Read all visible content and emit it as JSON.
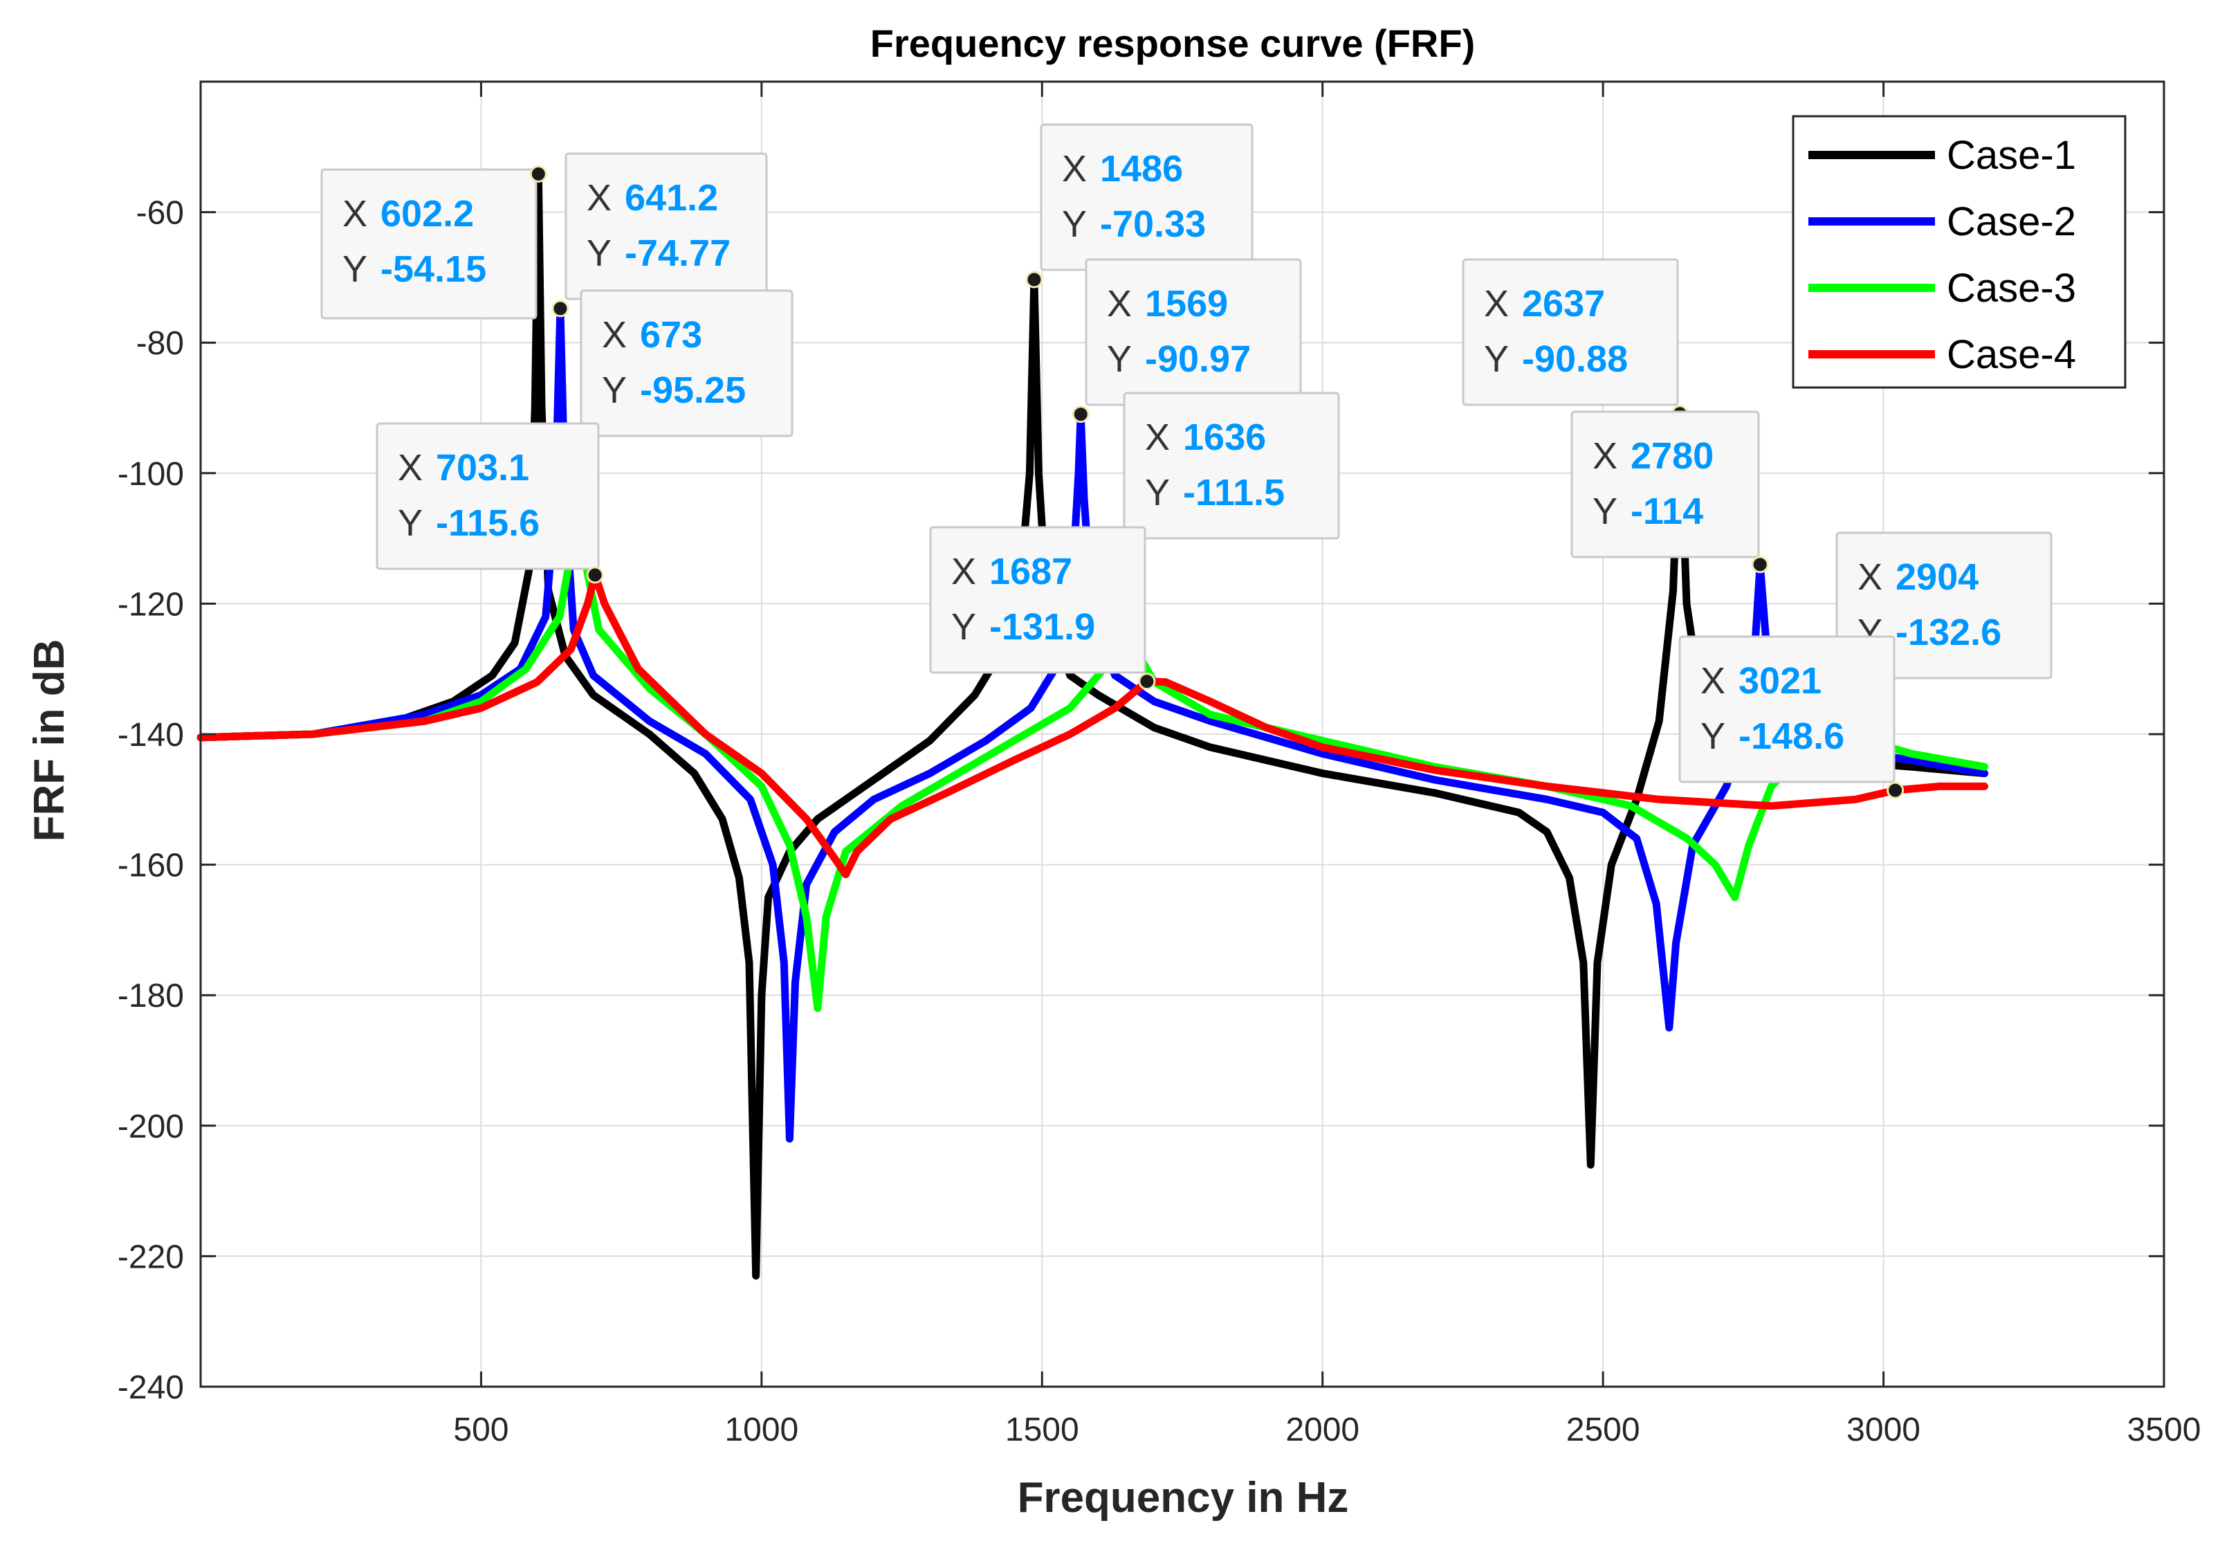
{
  "chart_data": {
    "type": "line",
    "title": "Frequency response curve (FRF)",
    "xlabel": "Frequency in Hz",
    "ylabel": "FRF in dB",
    "xlim": [
      0,
      3500
    ],
    "ylim": [
      -240,
      -40
    ],
    "grid": true,
    "legend_position": "top-right",
    "xticks": [
      500,
      1000,
      1500,
      2000,
      2500,
      3000,
      3500
    ],
    "xtick_labels": [
      "500",
      "1000",
      "1500",
      "2000",
      "2500",
      "3000",
      "3500"
    ],
    "yticks": [
      -60,
      -80,
      -100,
      -120,
      -140,
      -160,
      -180,
      -200,
      -220,
      -240
    ],
    "ytick_labels": [
      "-60",
      "-80",
      "-100",
      "-120",
      "-140",
      "-160",
      "-180",
      "-200",
      "-220",
      "-240"
    ],
    "series": [
      {
        "name": "Case-1",
        "color": "#000000",
        "points": [
          [
            0,
            -140.5
          ],
          [
            200,
            -140
          ],
          [
            350,
            -138
          ],
          [
            450,
            -135
          ],
          [
            520,
            -131
          ],
          [
            560,
            -126
          ],
          [
            585,
            -115
          ],
          [
            596,
            -90
          ],
          [
            602.2,
            -54.15
          ],
          [
            608,
            -90
          ],
          [
            620,
            -118
          ],
          [
            650,
            -128
          ],
          [
            700,
            -134
          ],
          [
            800,
            -140
          ],
          [
            880,
            -146
          ],
          [
            930,
            -153
          ],
          [
            960,
            -162
          ],
          [
            978,
            -175
          ],
          [
            990,
            -223
          ],
          [
            1000,
            -180
          ],
          [
            1012,
            -165
          ],
          [
            1050,
            -158
          ],
          [
            1100,
            -153
          ],
          [
            1200,
            -147
          ],
          [
            1300,
            -141
          ],
          [
            1380,
            -134
          ],
          [
            1430,
            -127
          ],
          [
            1460,
            -118
          ],
          [
            1478,
            -100
          ],
          [
            1486,
            -70.33
          ],
          [
            1494,
            -100
          ],
          [
            1510,
            -122
          ],
          [
            1550,
            -131
          ],
          [
            1600,
            -134
          ],
          [
            1700,
            -139
          ],
          [
            1800,
            -142
          ],
          [
            2000,
            -146
          ],
          [
            2200,
            -149
          ],
          [
            2350,
            -152
          ],
          [
            2400,
            -155
          ],
          [
            2440,
            -162
          ],
          [
            2465,
            -175
          ],
          [
            2478,
            -206
          ],
          [
            2490,
            -175
          ],
          [
            2515,
            -160
          ],
          [
            2560,
            -150
          ],
          [
            2600,
            -138
          ],
          [
            2625,
            -118
          ],
          [
            2637,
            -90.88
          ],
          [
            2649,
            -120
          ],
          [
            2680,
            -138
          ],
          [
            2750,
            -142
          ],
          [
            2900,
            -144
          ],
          [
            3050,
            -145
          ],
          [
            3180,
            -146
          ]
        ]
      },
      {
        "name": "Case-2",
        "color": "#0000ff",
        "points": [
          [
            0,
            -140.5
          ],
          [
            200,
            -140
          ],
          [
            400,
            -137
          ],
          [
            500,
            -134
          ],
          [
            570,
            -130
          ],
          [
            615,
            -122
          ],
          [
            632,
            -105
          ],
          [
            641.2,
            -74.77
          ],
          [
            650,
            -105
          ],
          [
            665,
            -124
          ],
          [
            700,
            -131
          ],
          [
            800,
            -138
          ],
          [
            900,
            -143
          ],
          [
            980,
            -150
          ],
          [
            1020,
            -160
          ],
          [
            1040,
            -175
          ],
          [
            1050,
            -202
          ],
          [
            1060,
            -178
          ],
          [
            1080,
            -163
          ],
          [
            1130,
            -155
          ],
          [
            1200,
            -150
          ],
          [
            1300,
            -146
          ],
          [
            1400,
            -141
          ],
          [
            1480,
            -136
          ],
          [
            1530,
            -129
          ],
          [
            1555,
            -115
          ],
          [
            1565,
            -100
          ],
          [
            1569,
            -90.97
          ],
          [
            1575,
            -104
          ],
          [
            1590,
            -122
          ],
          [
            1630,
            -131
          ],
          [
            1700,
            -135
          ],
          [
            1800,
            -138
          ],
          [
            2000,
            -143
          ],
          [
            2200,
            -147
          ],
          [
            2400,
            -150
          ],
          [
            2500,
            -152
          ],
          [
            2560,
            -156
          ],
          [
            2595,
            -166
          ],
          [
            2618,
            -185
          ],
          [
            2630,
            -172
          ],
          [
            2660,
            -157
          ],
          [
            2720,
            -148
          ],
          [
            2760,
            -138
          ],
          [
            2772,
            -125
          ],
          [
            2780,
            -114
          ],
          [
            2790,
            -125
          ],
          [
            2810,
            -138
          ],
          [
            2900,
            -142
          ],
          [
            3050,
            -144
          ],
          [
            3180,
            -146
          ]
        ]
      },
      {
        "name": "Case-3",
        "color": "#00ff00",
        "points": [
          [
            0,
            -140.5
          ],
          [
            200,
            -140
          ],
          [
            400,
            -138
          ],
          [
            500,
            -135
          ],
          [
            580,
            -130
          ],
          [
            640,
            -122
          ],
          [
            665,
            -110
          ],
          [
            673,
            -95.25
          ],
          [
            682,
            -112
          ],
          [
            710,
            -124
          ],
          [
            800,
            -133
          ],
          [
            900,
            -140
          ],
          [
            1000,
            -148
          ],
          [
            1050,
            -157
          ],
          [
            1080,
            -168
          ],
          [
            1100,
            -182
          ],
          [
            1115,
            -168
          ],
          [
            1150,
            -158
          ],
          [
            1250,
            -151
          ],
          [
            1350,
            -146
          ],
          [
            1450,
            -141
          ],
          [
            1550,
            -136
          ],
          [
            1610,
            -130
          ],
          [
            1636,
            -111.5
          ],
          [
            1660,
            -126
          ],
          [
            1700,
            -132
          ],
          [
            1800,
            -137
          ],
          [
            2000,
            -141
          ],
          [
            2200,
            -145
          ],
          [
            2400,
            -148
          ],
          [
            2550,
            -151
          ],
          [
            2650,
            -156
          ],
          [
            2700,
            -160
          ],
          [
            2735,
            -165
          ],
          [
            2760,
            -157
          ],
          [
            2800,
            -148
          ],
          [
            2880,
            -141
          ],
          [
            2904,
            -132.6
          ],
          [
            2930,
            -140
          ],
          [
            3050,
            -143
          ],
          [
            3180,
            -145
          ]
        ]
      },
      {
        "name": "Case-4",
        "color": "#ff0000",
        "points": [
          [
            0,
            -140.5
          ],
          [
            200,
            -140
          ],
          [
            400,
            -138
          ],
          [
            500,
            -136
          ],
          [
            600,
            -132
          ],
          [
            660,
            -127
          ],
          [
            690,
            -120
          ],
          [
            703.1,
            -115.6
          ],
          [
            720,
            -120
          ],
          [
            780,
            -130
          ],
          [
            900,
            -140
          ],
          [
            1000,
            -146
          ],
          [
            1080,
            -153
          ],
          [
            1130,
            -159
          ],
          [
            1150,
            -161.5
          ],
          [
            1170,
            -158
          ],
          [
            1230,
            -153
          ],
          [
            1330,
            -149
          ],
          [
            1450,
            -144
          ],
          [
            1550,
            -140
          ],
          [
            1630,
            -136
          ],
          [
            1687,
            -131.9
          ],
          [
            1720,
            -132
          ],
          [
            1800,
            -135
          ],
          [
            1900,
            -139
          ],
          [
            2000,
            -142
          ],
          [
            2200,
            -145.5
          ],
          [
            2400,
            -148
          ],
          [
            2600,
            -150
          ],
          [
            2800,
            -151
          ],
          [
            2950,
            -150
          ],
          [
            3021,
            -148.6
          ],
          [
            3100,
            -148
          ],
          [
            3180,
            -148
          ]
        ]
      }
    ],
    "datatips": [
      {
        "x_label": "X",
        "y_label": "Y",
        "x": "602.2",
        "y": "-54.15",
        "px": 602.2,
        "py": -54.15
      },
      {
        "x_label": "X",
        "y_label": "Y",
        "x": "641.2",
        "y": "-74.77",
        "px": 641.2,
        "py": -74.77
      },
      {
        "x_label": "X",
        "y_label": "Y",
        "x": "673",
        "y": "-95.25",
        "px": 673,
        "py": -95.25
      },
      {
        "x_label": "X",
        "y_label": "Y",
        "x": "703.1",
        "y": "-115.6",
        "px": 703.1,
        "py": -115.6
      },
      {
        "x_label": "X",
        "y_label": "Y",
        "x": "1486",
        "y": "-70.33",
        "px": 1486,
        "py": -70.33
      },
      {
        "x_label": "X",
        "y_label": "Y",
        "x": "1569",
        "y": "-90.97",
        "px": 1569,
        "py": -90.97
      },
      {
        "x_label": "X",
        "y_label": "Y",
        "x": "1636",
        "y": "-111.5",
        "px": 1636,
        "py": -111.5
      },
      {
        "x_label": "X",
        "y_label": "Y",
        "x": "1687",
        "y": "-131.9",
        "px": 1687,
        "py": -131.9
      },
      {
        "x_label": "X",
        "y_label": "Y",
        "x": "2637",
        "y": "-90.88",
        "px": 2637,
        "py": -90.88
      },
      {
        "x_label": "X",
        "y_label": "Y",
        "x": "2780",
        "y": "-114",
        "px": 2780,
        "py": -114
      },
      {
        "x_label": "X",
        "y_label": "Y",
        "x": "2904",
        "y": "-132.6",
        "px": 2904,
        "py": -132.6
      },
      {
        "x_label": "X",
        "y_label": "Y",
        "x": "3021",
        "y": "-148.6",
        "px": 3021,
        "py": -148.6
      }
    ]
  }
}
